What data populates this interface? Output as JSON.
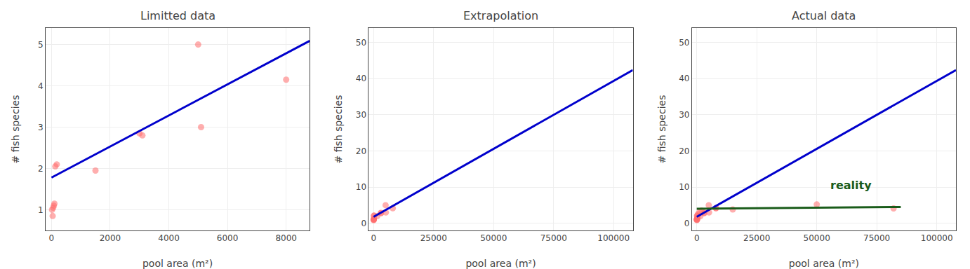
{
  "chart_data": [
    {
      "type": "scatter",
      "title": "Limitted data",
      "xlabel": "pool area (m²)",
      "ylabel": "# fish species",
      "xlim": [
        -200,
        8800
      ],
      "ylim": [
        0.5,
        5.4
      ],
      "xticks": [
        0,
        2000,
        4000,
        6000,
        8000
      ],
      "yticks": [
        1,
        2,
        3,
        4,
        5
      ],
      "grid": true,
      "series": [
        {
          "type": "scatter",
          "color": "#FF6B6B",
          "x": [
            20,
            40,
            60,
            80,
            100,
            130,
            180,
            1500,
            3000,
            3100,
            5000,
            5100,
            8000
          ],
          "values": [
            1.0,
            0.85,
            1.05,
            1.1,
            1.15,
            2.05,
            2.1,
            1.95,
            2.85,
            2.8,
            5.0,
            3.0,
            4.15
          ]
        },
        {
          "type": "line",
          "color": "#0000CC",
          "x": [
            0,
            8800
          ],
          "values": [
            1.78,
            5.0888
          ]
        }
      ]
    },
    {
      "type": "scatter",
      "title": "Extrapolation",
      "xlabel": "pool area (m²)",
      "ylabel": "# fish species",
      "xlim": [
        -2000,
        108000
      ],
      "ylim": [
        -2,
        54
      ],
      "xticks": [
        0,
        25000,
        50000,
        75000,
        100000
      ],
      "yticks": [
        0,
        10,
        20,
        30,
        40,
        50
      ],
      "grid": true,
      "series": [
        {
          "type": "scatter",
          "color": "#FF6B6B",
          "x": [
            20,
            40,
            60,
            80,
            100,
            130,
            180,
            1500,
            3000,
            3100,
            5000,
            5100,
            8000
          ],
          "values": [
            1.0,
            0.85,
            1.05,
            1.1,
            1.15,
            2.05,
            2.1,
            1.95,
            2.85,
            2.8,
            5.0,
            3.0,
            4.15
          ]
        },
        {
          "type": "line",
          "color": "#0000CC",
          "x": [
            0,
            108000
          ],
          "values": [
            1.78,
            42.388
          ]
        }
      ]
    },
    {
      "type": "scatter",
      "title": "Actual data",
      "xlabel": "pool area (m²)",
      "ylabel": "# fish species",
      "xlim": [
        -2000,
        108000
      ],
      "ylim": [
        -2,
        54
      ],
      "xticks": [
        0,
        25000,
        50000,
        75000,
        100000
      ],
      "yticks": [
        0,
        10,
        20,
        30,
        40,
        50
      ],
      "grid": true,
      "series": [
        {
          "type": "scatter",
          "color": "#FF6B6B",
          "x": [
            20,
            40,
            60,
            80,
            100,
            130,
            180,
            1500,
            3000,
            3100,
            5000,
            5100,
            8000,
            300,
            500,
            1200,
            2000,
            8000,
            15000,
            50000,
            82000
          ],
          "values": [
            1.0,
            0.85,
            1.05,
            1.1,
            1.15,
            2.05,
            2.1,
            1.95,
            2.85,
            2.8,
            5.0,
            3.0,
            4.15,
            1.5,
            2.5,
            3.2,
            3.5,
            4.2,
            3.8,
            5.2,
            4.1
          ]
        },
        {
          "type": "line",
          "color": "#0000CC",
          "x": [
            0,
            108000
          ],
          "values": [
            1.78,
            42.388
          ]
        },
        {
          "type": "line",
          "color": "#1a5c1a",
          "x": [
            0,
            85000
          ],
          "values": [
            4.0,
            4.5
          ]
        }
      ],
      "annotations": [
        {
          "text": "reality",
          "x": 55000,
          "y": 10.5,
          "color": "#1a5c1a"
        }
      ]
    }
  ]
}
